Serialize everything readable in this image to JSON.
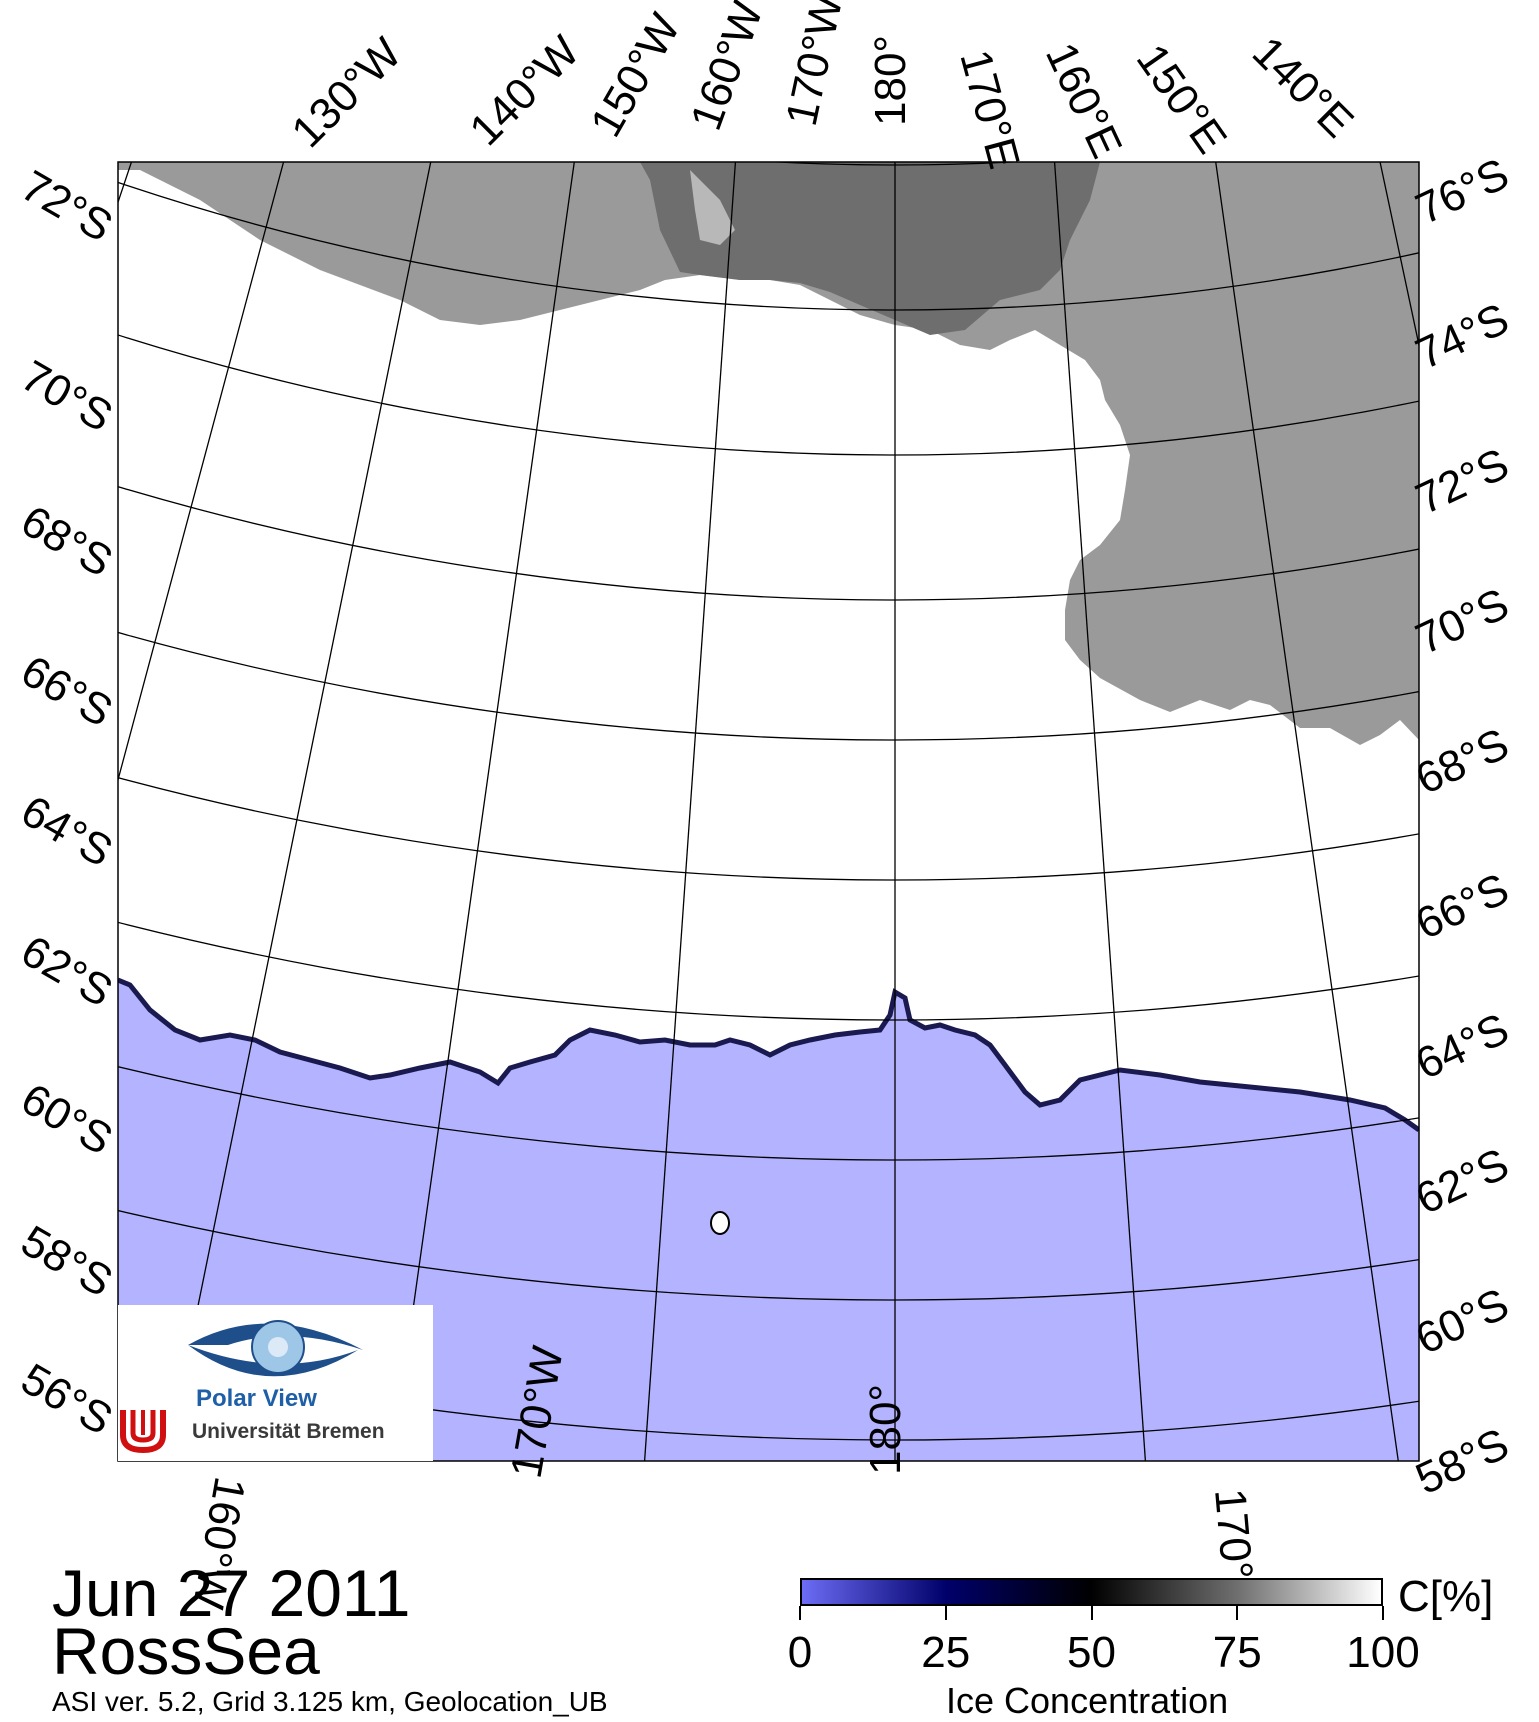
{
  "map": {
    "colors": {
      "land": "#9a9a9a",
      "ice_shelf": "#b8b8b8",
      "land_dark": "#6e6e6e",
      "sea_ice": "#ffffff",
      "open_water": "#b3b3ff",
      "ice_edge": "#1a1a50",
      "grid": "#000000"
    },
    "top_labels": [
      "130°W",
      "140°W",
      "150°W",
      "160°W",
      "170°W",
      "180°",
      "170°E",
      "160°E",
      "150°E",
      "140°E"
    ],
    "left_labels": [
      "72°S",
      "70°S",
      "68°S",
      "66°S",
      "64°S",
      "62°S",
      "60°S",
      "58°S",
      "56°S"
    ],
    "right_labels": [
      "76°S",
      "74°S",
      "72°S",
      "70°S",
      "68°S",
      "66°S",
      "64°S",
      "62°S",
      "60°S",
      "58°S"
    ],
    "bottom_labels": [
      "160°W",
      "170°W",
      "180°",
      "170°"
    ]
  },
  "header": {
    "date": "Jun 27 2011",
    "region": "RossSea",
    "footnote": "ASI ver. 5.2,  Grid 3.125 km, Geolocation_UB"
  },
  "logo": {
    "line1": "Polar View",
    "line2": "Universität Bremen"
  },
  "colorbar": {
    "title": "Ice Concentration",
    "unit": "C[%]",
    "ticks": [
      "0",
      "25",
      "50",
      "75",
      "100"
    ],
    "colors": [
      "#6c6cf5",
      "#00006a",
      "#000000",
      "#6e6e6e",
      "#ffffff"
    ]
  }
}
